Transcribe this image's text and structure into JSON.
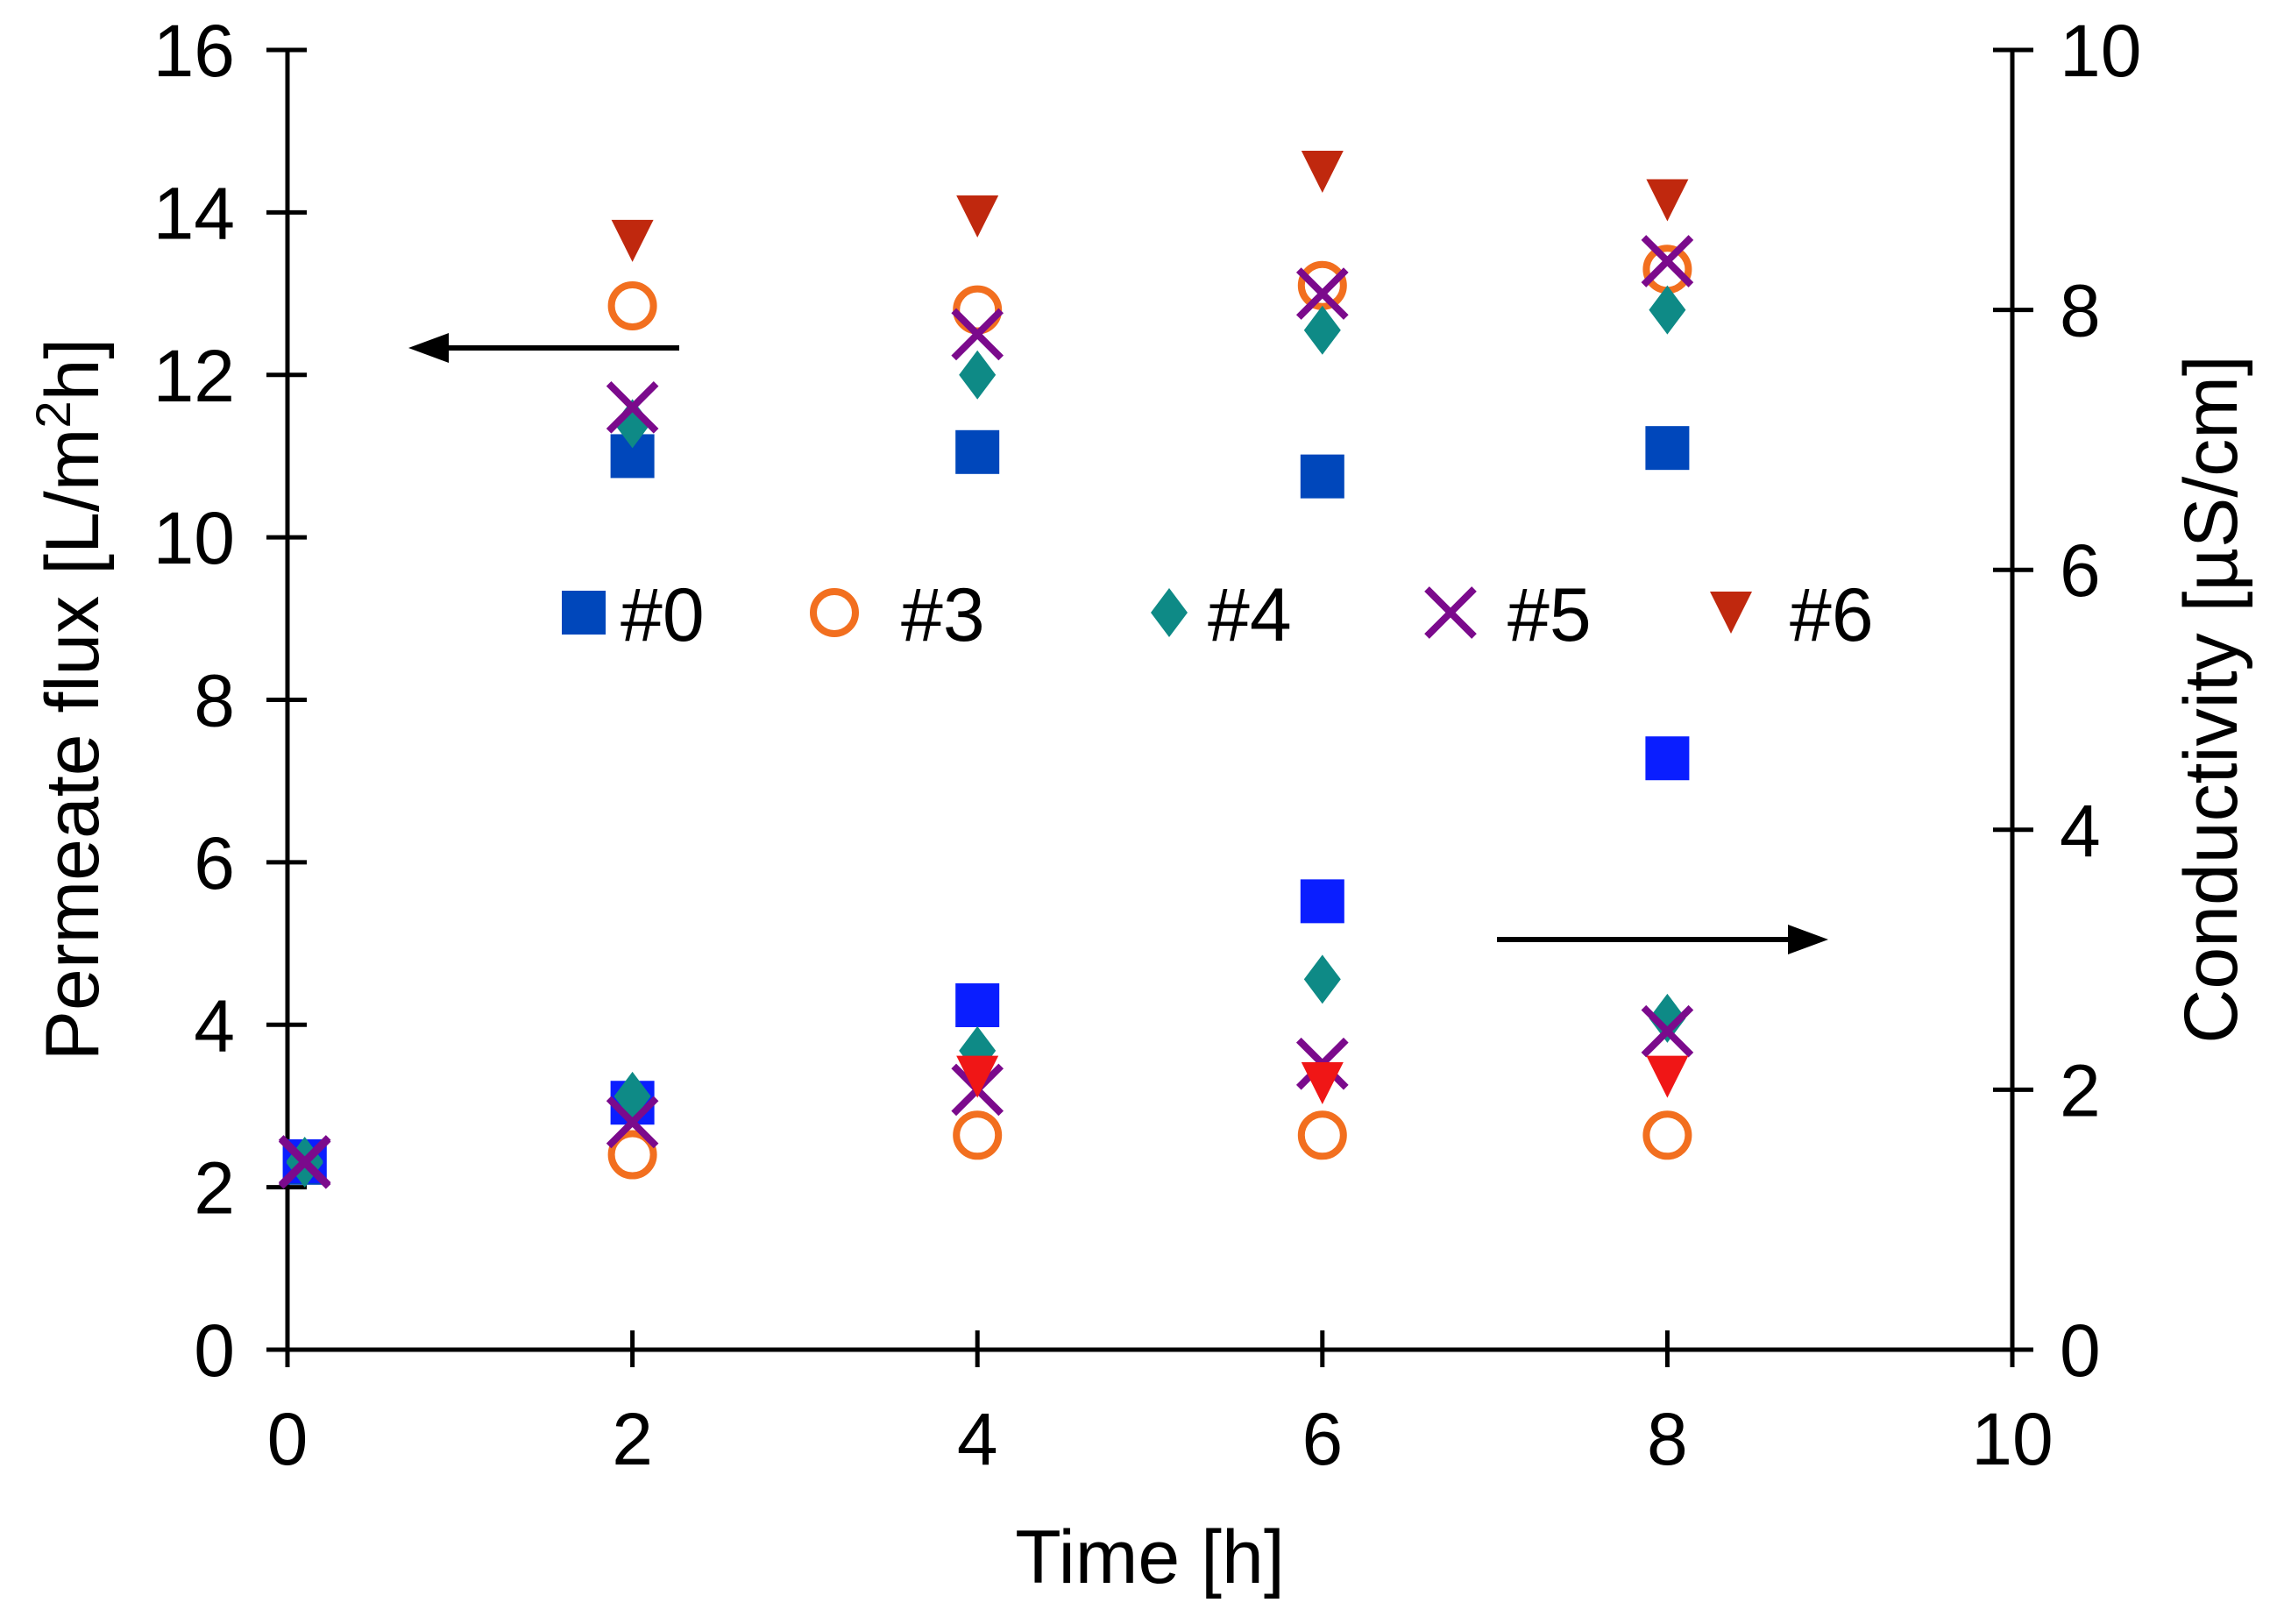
{
  "chart_data": {
    "type": "scatter",
    "title": "",
    "xlabel": "Time [h]",
    "ylabel_left": "Permeate flux [L/m²h]",
    "ylabel_left_parts": {
      "before": "Permeate flux [L/m",
      "sup": "2",
      "after": "h]"
    },
    "ylabel_right": "Conductivity [µS/cm]",
    "xlim": [
      0,
      10
    ],
    "ylim_left": [
      0,
      16
    ],
    "ylim_right": [
      0,
      10
    ],
    "x_ticks": [
      0,
      2,
      4,
      6,
      8,
      10
    ],
    "y_left_ticks": [
      0,
      2,
      4,
      6,
      8,
      10,
      12,
      14,
      16
    ],
    "y_right_ticks": [
      0,
      2,
      4,
      6,
      8,
      10
    ],
    "grid": false,
    "legend_position": "center",
    "annotations": [
      {
        "name": "left-axis-arrow",
        "direction": "left",
        "refers_to": "Permeate flux"
      },
      {
        "name": "right-axis-arrow",
        "direction": "right",
        "refers_to": "Conductivity"
      }
    ],
    "series": [
      {
        "name": "#0",
        "marker": "square",
        "color": "#0047bb",
        "color_conductivity": "#0a1eff",
        "flux": [
          [
            0.1,
            2.3
          ],
          [
            2,
            11.0
          ],
          [
            4,
            11.05
          ],
          [
            6,
            10.75
          ],
          [
            8,
            11.1
          ]
        ],
        "conductivity": [
          [
            0.1,
            1.45
          ],
          [
            2,
            1.9
          ],
          [
            4,
            2.65
          ],
          [
            6,
            3.45
          ],
          [
            8,
            4.55
          ]
        ]
      },
      {
        "name": "#3",
        "marker": "circle-open",
        "color": "#f26f1f",
        "color_conductivity": "#f26f1f",
        "flux": [
          [
            2,
            12.85
          ],
          [
            4,
            12.8
          ],
          [
            6,
            13.1
          ],
          [
            8,
            13.3
          ]
        ],
        "conductivity": [
          [
            2,
            1.5
          ],
          [
            4,
            1.65
          ],
          [
            6,
            1.65
          ],
          [
            8,
            1.65
          ]
        ]
      },
      {
        "name": "#4",
        "marker": "diamond",
        "color": "#0e8a86",
        "color_conductivity": "#0e8a86",
        "flux": [
          [
            0.1,
            2.3
          ],
          [
            2,
            11.4
          ],
          [
            4,
            12.0
          ],
          [
            6,
            12.55
          ],
          [
            8,
            12.8
          ]
        ],
        "conductivity": [
          [
            0.1,
            1.45
          ],
          [
            2,
            1.95
          ],
          [
            4,
            2.3
          ],
          [
            6,
            2.85
          ],
          [
            8,
            2.55
          ]
        ]
      },
      {
        "name": "#5",
        "marker": "x",
        "color": "#7b0a8c",
        "color_conductivity": "#7b0a8c",
        "flux": [
          [
            0.1,
            2.3
          ],
          [
            2,
            11.6
          ],
          [
            4,
            12.5
          ],
          [
            6,
            13.0
          ],
          [
            8,
            13.4
          ]
        ],
        "conductivity": [
          [
            0.1,
            1.45
          ],
          [
            2,
            1.75
          ],
          [
            4,
            2.0
          ],
          [
            6,
            2.2
          ],
          [
            8,
            2.45
          ]
        ]
      },
      {
        "name": "#6",
        "marker": "triangle-down",
        "color": "#c0280e",
        "color_conductivity": "#f01616",
        "flux": [
          [
            2,
            13.65
          ],
          [
            4,
            13.95
          ],
          [
            6,
            14.5
          ],
          [
            8,
            14.15
          ]
        ],
        "conductivity": [
          [
            4,
            2.1
          ],
          [
            6,
            2.05
          ],
          [
            8,
            2.1
          ]
        ]
      }
    ]
  }
}
